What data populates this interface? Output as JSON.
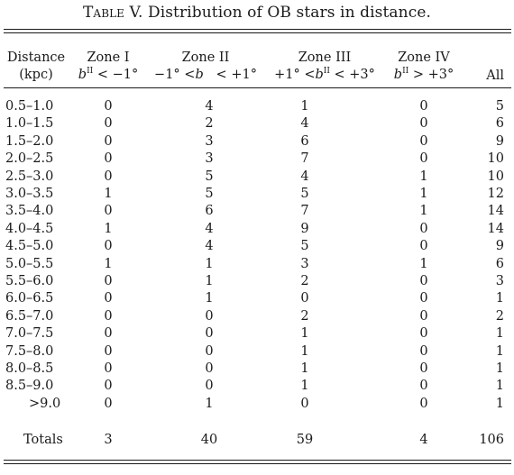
{
  "caption": {
    "label": "Table V.",
    "text": "Distribution of OB stars in distance."
  },
  "header": {
    "distance": [
      "Distance",
      "(kpc)"
    ],
    "zones": [
      {
        "name": "Zone I",
        "range": [
          {
            "i": "b"
          },
          {
            "sup": "II"
          },
          {
            "t": " < −1°"
          }
        ]
      },
      {
        "name": "Zone II",
        "range": [
          {
            "t": "−1° <"
          },
          {
            "i": "b"
          },
          {
            "t": "   < +1°"
          }
        ]
      },
      {
        "name": "Zone III",
        "range": [
          {
            "t": "+1° <"
          },
          {
            "i": "b"
          },
          {
            "sup": "II"
          },
          {
            "t": " < +3°"
          }
        ]
      },
      {
        "name": "Zone IV",
        "range": [
          {
            "i": "b"
          },
          {
            "sup": "II"
          },
          {
            "t": " > +3°"
          }
        ]
      }
    ],
    "all": "All"
  },
  "rows": [
    {
      "range": "0.5–1.0",
      "values": [
        "0",
        "4",
        "1",
        "0",
        "5"
      ]
    },
    {
      "range": "1.0–1.5",
      "values": [
        "0",
        "2",
        "4",
        "0",
        "6"
      ]
    },
    {
      "range": "1.5–2.0",
      "values": [
        "0",
        "3",
        "6",
        "0",
        "9"
      ]
    },
    {
      "range": "2.0–2.5",
      "values": [
        "0",
        "3",
        "7",
        "0",
        "10"
      ]
    },
    {
      "range": "2.5–3.0",
      "values": [
        "0",
        "5",
        "4",
        "1",
        "10"
      ]
    },
    {
      "range": "3.0–3.5",
      "values": [
        "1",
        "5",
        "5",
        "1",
        "12"
      ]
    },
    {
      "range": "3.5–4.0",
      "values": [
        "0",
        "6",
        "7",
        "1",
        "14"
      ]
    },
    {
      "range": "4.0–4.5",
      "values": [
        "1",
        "4",
        "9",
        "0",
        "14"
      ]
    },
    {
      "range": "4.5–5.0",
      "values": [
        "0",
        "4",
        "5",
        "0",
        "9"
      ]
    },
    {
      "range": "5.0–5.5",
      "values": [
        "1",
        "1",
        "3",
        "1",
        "6"
      ]
    },
    {
      "range": "5.5–6.0",
      "values": [
        "0",
        "1",
        "2",
        "0",
        "3"
      ]
    },
    {
      "range": "6.0–6.5",
      "values": [
        "0",
        "1",
        "0",
        "0",
        "1"
      ]
    },
    {
      "range": "6.5–7.0",
      "values": [
        "0",
        "0",
        "2",
        "0",
        "2"
      ]
    },
    {
      "range": "7.0–7.5",
      "values": [
        "0",
        "0",
        "1",
        "0",
        "1"
      ]
    },
    {
      "range": "7.5–8.0",
      "values": [
        "0",
        "0",
        "1",
        "0",
        "1"
      ]
    },
    {
      "range": "8.0–8.5",
      "values": [
        "0",
        "0",
        "1",
        "0",
        "1"
      ]
    },
    {
      "range": "8.5–9.0",
      "values": [
        "0",
        "0",
        "1",
        "0",
        "1"
      ]
    },
    {
      "range": ">9.0",
      "values": [
        "0",
        "1",
        "0",
        "0",
        "1"
      ]
    }
  ],
  "totals": {
    "label": "Totals",
    "values": [
      "3",
      "40",
      "59",
      "4",
      "106"
    ]
  }
}
